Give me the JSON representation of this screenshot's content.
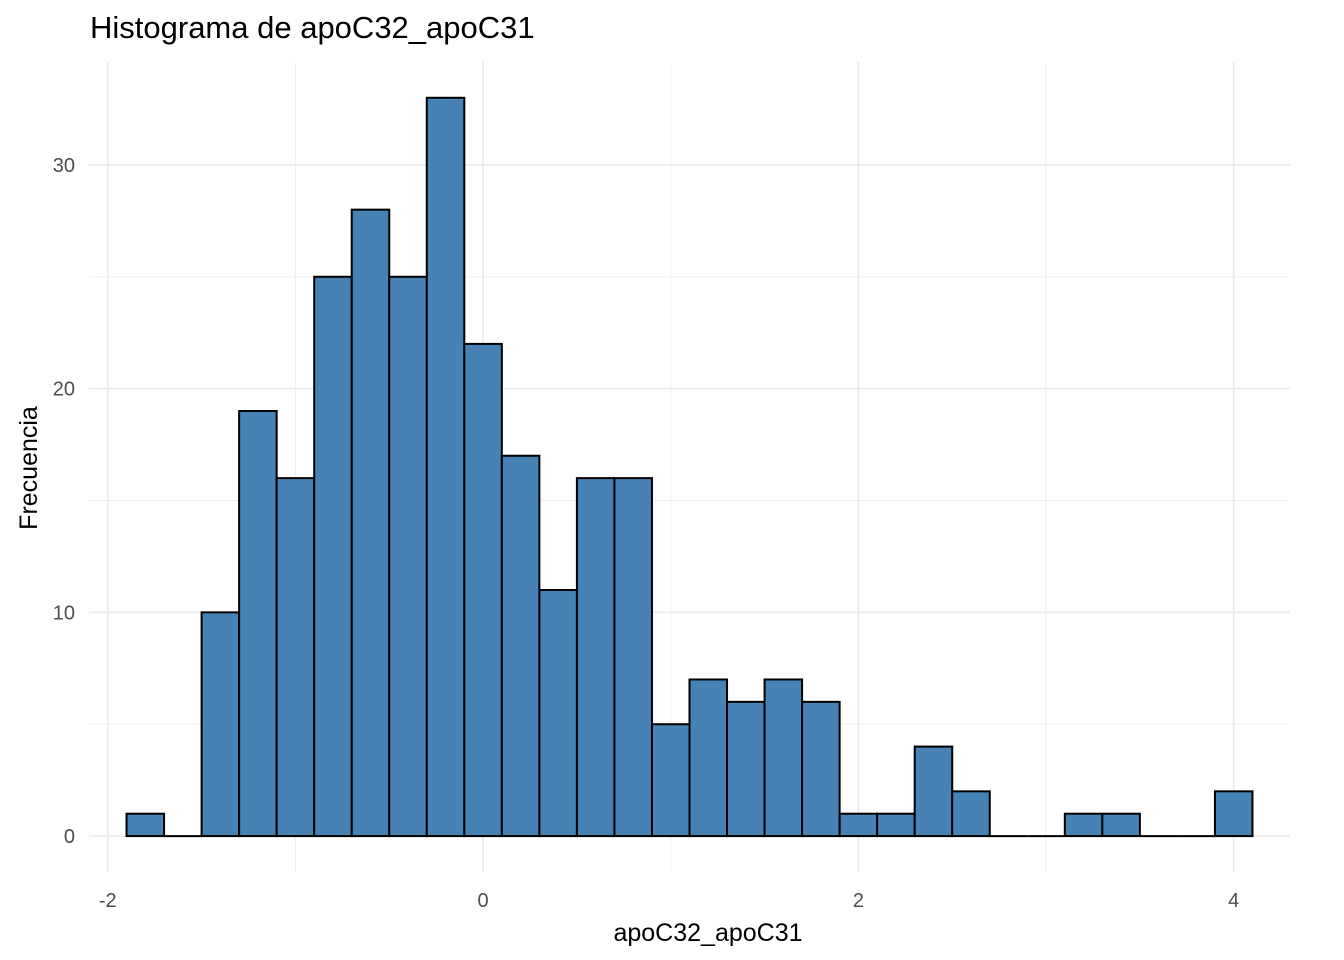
{
  "chart_data": {
    "type": "bar",
    "title": "Histograma de apoC32_apoC31",
    "xlabel": "apoC32_apoC31",
    "ylabel": "Frecuencia",
    "xlim": [
      -2.1,
      4.3
    ],
    "ylim": [
      -1.65,
      34.6
    ],
    "grid": true,
    "bar_fill": "#4682B4",
    "bar_stroke": "#000000",
    "x_ticks": [
      -2,
      0,
      2,
      4
    ],
    "x_tick_labels": [
      "-2",
      "0",
      "2",
      "4"
    ],
    "y_ticks": [
      0,
      10,
      20,
      30
    ],
    "y_tick_labels": [
      "0",
      "10",
      "20",
      "30"
    ],
    "bin_width": 0.2,
    "bins": [
      {
        "x0": -1.9,
        "x1": -1.7,
        "count": 1
      },
      {
        "x0": -1.7,
        "x1": -1.5,
        "count": 0
      },
      {
        "x0": -1.5,
        "x1": -1.3,
        "count": 10
      },
      {
        "x0": -1.3,
        "x1": -1.1,
        "count": 19
      },
      {
        "x0": -1.1,
        "x1": -0.9,
        "count": 16
      },
      {
        "x0": -0.9,
        "x1": -0.7,
        "count": 25
      },
      {
        "x0": -0.7,
        "x1": -0.5,
        "count": 28
      },
      {
        "x0": -0.5,
        "x1": -0.3,
        "count": 25
      },
      {
        "x0": -0.3,
        "x1": -0.1,
        "count": 33
      },
      {
        "x0": -0.1,
        "x1": 0.1,
        "count": 22
      },
      {
        "x0": 0.1,
        "x1": 0.3,
        "count": 17
      },
      {
        "x0": 0.3,
        "x1": 0.5,
        "count": 11
      },
      {
        "x0": 0.5,
        "x1": 0.7,
        "count": 16
      },
      {
        "x0": 0.7,
        "x1": 0.9,
        "count": 16
      },
      {
        "x0": 0.9,
        "x1": 1.1,
        "count": 5
      },
      {
        "x0": 1.1,
        "x1": 1.3,
        "count": 7
      },
      {
        "x0": 1.3,
        "x1": 1.5,
        "count": 6
      },
      {
        "x0": 1.5,
        "x1": 1.7,
        "count": 7
      },
      {
        "x0": 1.7,
        "x1": 1.9,
        "count": 6
      },
      {
        "x0": 1.9,
        "x1": 2.1,
        "count": 1
      },
      {
        "x0": 2.1,
        "x1": 2.3,
        "count": 1
      },
      {
        "x0": 2.3,
        "x1": 2.5,
        "count": 4
      },
      {
        "x0": 2.5,
        "x1": 2.7,
        "count": 2
      },
      {
        "x0": 2.7,
        "x1": 2.9,
        "count": 0
      },
      {
        "x0": 2.9,
        "x1": 3.1,
        "count": 0
      },
      {
        "x0": 3.1,
        "x1": 3.3,
        "count": 1
      },
      {
        "x0": 3.3,
        "x1": 3.5,
        "count": 1
      },
      {
        "x0": 3.5,
        "x1": 3.7,
        "count": 0
      },
      {
        "x0": 3.7,
        "x1": 3.9,
        "count": 0
      },
      {
        "x0": 3.9,
        "x1": 4.1,
        "count": 2
      }
    ]
  }
}
